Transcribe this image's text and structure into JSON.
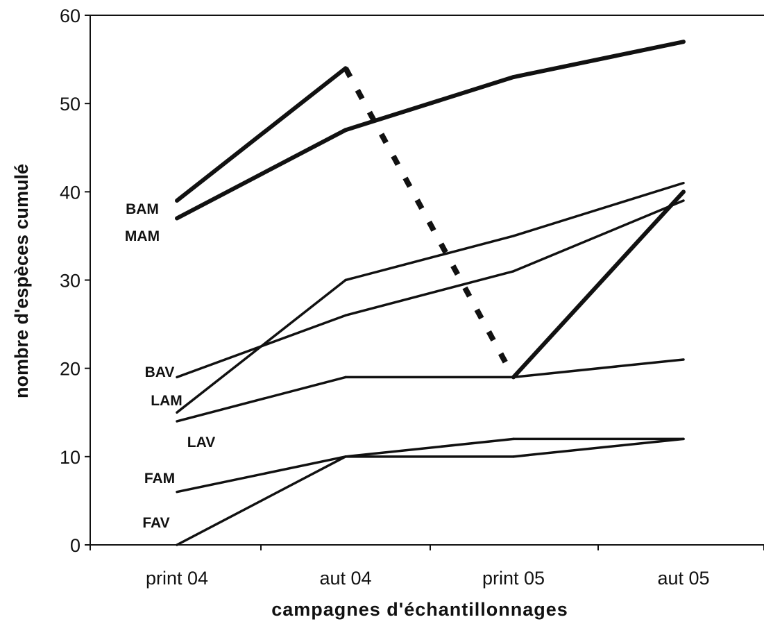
{
  "chart_data": {
    "type": "line",
    "title": "",
    "xlabel": "campagnes d'échantillonnages",
    "ylabel": "nombre d'espèces cumulé",
    "categories": [
      "print 04",
      "aut 04",
      "print 05",
      "aut 05"
    ],
    "ylim": [
      0,
      60
    ],
    "yticks": [
      0,
      10,
      20,
      30,
      40,
      50,
      60
    ],
    "grid": false,
    "series": [
      {
        "name": "BAM",
        "values": [
          39,
          54,
          19,
          40
        ],
        "style": "bold",
        "dashed_segments": [
          1
        ]
      },
      {
        "name": "MAM",
        "values": [
          37,
          47,
          53,
          57
        ],
        "style": "bold"
      },
      {
        "name": "BAV",
        "values": [
          19,
          26,
          31,
          39
        ],
        "style": "thin"
      },
      {
        "name": "LAM",
        "values": [
          15,
          30,
          35,
          41
        ],
        "style": "thin"
      },
      {
        "name": "LAV",
        "values": [
          14,
          19,
          19,
          21
        ],
        "style": "thin"
      },
      {
        "name": "FAM",
        "values": [
          6,
          10,
          10,
          12
        ],
        "style": "thin"
      },
      {
        "name": "FAV",
        "values": [
          0,
          10,
          12,
          12
        ],
        "style": "thin"
      }
    ]
  }
}
